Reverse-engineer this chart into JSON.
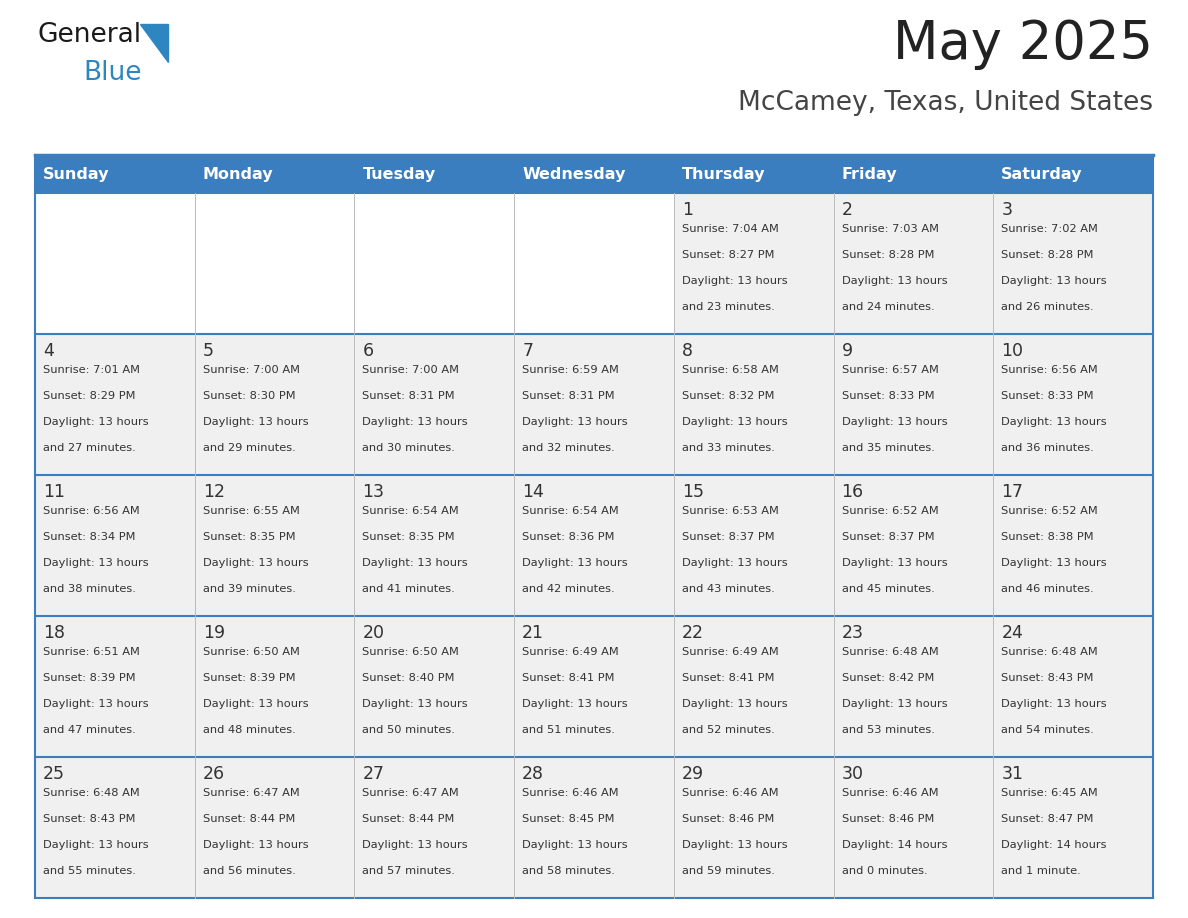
{
  "title": "May 2025",
  "subtitle": "McCamey, Texas, United States",
  "days_of_week": [
    "Sunday",
    "Monday",
    "Tuesday",
    "Wednesday",
    "Thursday",
    "Friday",
    "Saturday"
  ],
  "header_bg": "#3a7ebf",
  "header_text": "#ffffff",
  "cell_bg_light": "#f0f0f0",
  "cell_bg_white": "#ffffff",
  "cell_text": "#333333",
  "divider_color": "#3a7ebf",
  "title_color": "#222222",
  "subtitle_color": "#444444",
  "logo_general_color": "#1a1a1a",
  "logo_blue_color": "#2e86c1",
  "weeks": [
    [
      {
        "day": null,
        "sunrise": null,
        "sunset": null,
        "daylight": null
      },
      {
        "day": null,
        "sunrise": null,
        "sunset": null,
        "daylight": null
      },
      {
        "day": null,
        "sunrise": null,
        "sunset": null,
        "daylight": null
      },
      {
        "day": null,
        "sunrise": null,
        "sunset": null,
        "daylight": null
      },
      {
        "day": 1,
        "sunrise": "7:04 AM",
        "sunset": "8:27 PM",
        "daylight": "13 hours and 23 minutes."
      },
      {
        "day": 2,
        "sunrise": "7:03 AM",
        "sunset": "8:28 PM",
        "daylight": "13 hours and 24 minutes."
      },
      {
        "day": 3,
        "sunrise": "7:02 AM",
        "sunset": "8:28 PM",
        "daylight": "13 hours and 26 minutes."
      }
    ],
    [
      {
        "day": 4,
        "sunrise": "7:01 AM",
        "sunset": "8:29 PM",
        "daylight": "13 hours and 27 minutes."
      },
      {
        "day": 5,
        "sunrise": "7:00 AM",
        "sunset": "8:30 PM",
        "daylight": "13 hours and 29 minutes."
      },
      {
        "day": 6,
        "sunrise": "7:00 AM",
        "sunset": "8:31 PM",
        "daylight": "13 hours and 30 minutes."
      },
      {
        "day": 7,
        "sunrise": "6:59 AM",
        "sunset": "8:31 PM",
        "daylight": "13 hours and 32 minutes."
      },
      {
        "day": 8,
        "sunrise": "6:58 AM",
        "sunset": "8:32 PM",
        "daylight": "13 hours and 33 minutes."
      },
      {
        "day": 9,
        "sunrise": "6:57 AM",
        "sunset": "8:33 PM",
        "daylight": "13 hours and 35 minutes."
      },
      {
        "day": 10,
        "sunrise": "6:56 AM",
        "sunset": "8:33 PM",
        "daylight": "13 hours and 36 minutes."
      }
    ],
    [
      {
        "day": 11,
        "sunrise": "6:56 AM",
        "sunset": "8:34 PM",
        "daylight": "13 hours and 38 minutes."
      },
      {
        "day": 12,
        "sunrise": "6:55 AM",
        "sunset": "8:35 PM",
        "daylight": "13 hours and 39 minutes."
      },
      {
        "day": 13,
        "sunrise": "6:54 AM",
        "sunset": "8:35 PM",
        "daylight": "13 hours and 41 minutes."
      },
      {
        "day": 14,
        "sunrise": "6:54 AM",
        "sunset": "8:36 PM",
        "daylight": "13 hours and 42 minutes."
      },
      {
        "day": 15,
        "sunrise": "6:53 AM",
        "sunset": "8:37 PM",
        "daylight": "13 hours and 43 minutes."
      },
      {
        "day": 16,
        "sunrise": "6:52 AM",
        "sunset": "8:37 PM",
        "daylight": "13 hours and 45 minutes."
      },
      {
        "day": 17,
        "sunrise": "6:52 AM",
        "sunset": "8:38 PM",
        "daylight": "13 hours and 46 minutes."
      }
    ],
    [
      {
        "day": 18,
        "sunrise": "6:51 AM",
        "sunset": "8:39 PM",
        "daylight": "13 hours and 47 minutes."
      },
      {
        "day": 19,
        "sunrise": "6:50 AM",
        "sunset": "8:39 PM",
        "daylight": "13 hours and 48 minutes."
      },
      {
        "day": 20,
        "sunrise": "6:50 AM",
        "sunset": "8:40 PM",
        "daylight": "13 hours and 50 minutes."
      },
      {
        "day": 21,
        "sunrise": "6:49 AM",
        "sunset": "8:41 PM",
        "daylight": "13 hours and 51 minutes."
      },
      {
        "day": 22,
        "sunrise": "6:49 AM",
        "sunset": "8:41 PM",
        "daylight": "13 hours and 52 minutes."
      },
      {
        "day": 23,
        "sunrise": "6:48 AM",
        "sunset": "8:42 PM",
        "daylight": "13 hours and 53 minutes."
      },
      {
        "day": 24,
        "sunrise": "6:48 AM",
        "sunset": "8:43 PM",
        "daylight": "13 hours and 54 minutes."
      }
    ],
    [
      {
        "day": 25,
        "sunrise": "6:48 AM",
        "sunset": "8:43 PM",
        "daylight": "13 hours and 55 minutes."
      },
      {
        "day": 26,
        "sunrise": "6:47 AM",
        "sunset": "8:44 PM",
        "daylight": "13 hours and 56 minutes."
      },
      {
        "day": 27,
        "sunrise": "6:47 AM",
        "sunset": "8:44 PM",
        "daylight": "13 hours and 57 minutes."
      },
      {
        "day": 28,
        "sunrise": "6:46 AM",
        "sunset": "8:45 PM",
        "daylight": "13 hours and 58 minutes."
      },
      {
        "day": 29,
        "sunrise": "6:46 AM",
        "sunset": "8:46 PM",
        "daylight": "13 hours and 59 minutes."
      },
      {
        "day": 30,
        "sunrise": "6:46 AM",
        "sunset": "8:46 PM",
        "daylight": "14 hours and 0 minutes."
      },
      {
        "day": 31,
        "sunrise": "6:45 AM",
        "sunset": "8:47 PM",
        "daylight": "14 hours and 1 minute."
      }
    ]
  ],
  "fig_width": 11.88,
  "fig_height": 9.18,
  "fig_dpi": 100
}
